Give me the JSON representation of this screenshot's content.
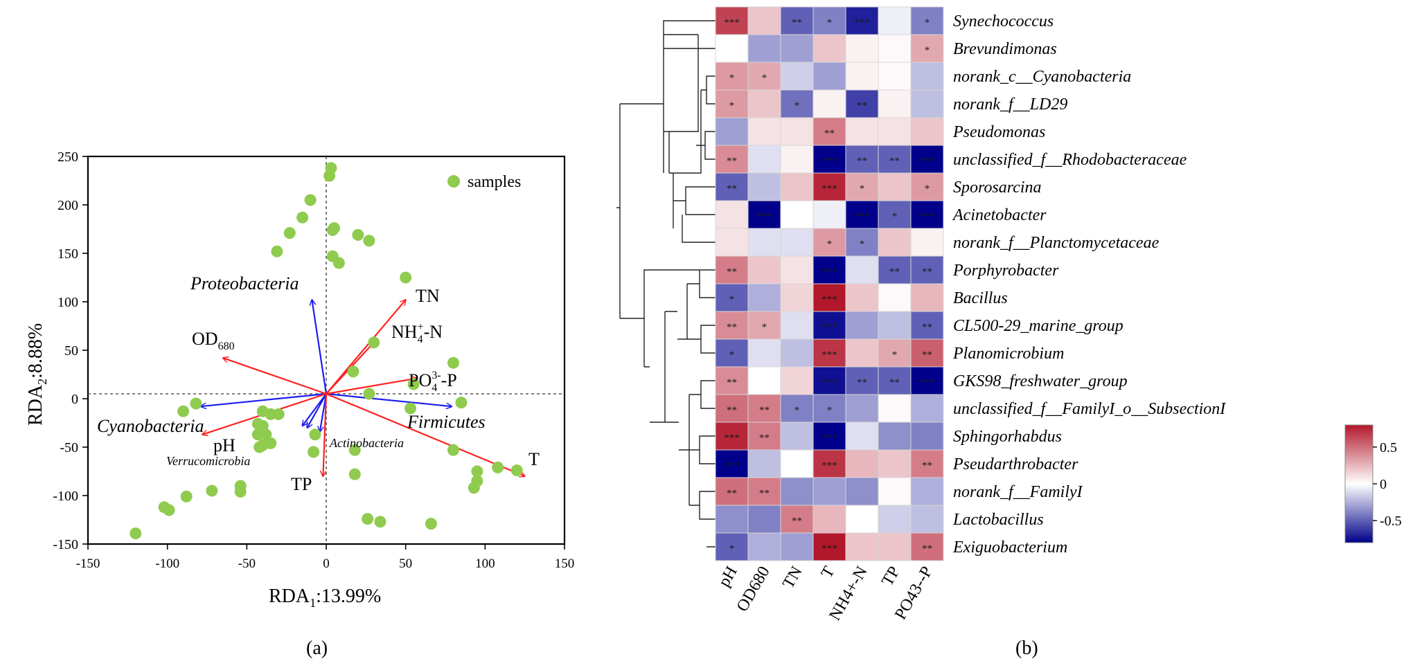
{
  "chart_data": [
    {
      "type": "scatter",
      "panel_label": "(a)",
      "xlabel": "RDA",
      "xlabel_sub": "1",
      "xlabel_suffix": ":13.99%",
      "ylabel": "RDA",
      "ylabel_sub": "2",
      "ylabel_suffix": ":8.88%",
      "xlim": [
        -150,
        150
      ],
      "ylim": [
        -150,
        250
      ],
      "xticks": [
        "-150",
        "-100",
        "-50",
        "0",
        "50",
        "100",
        "150"
      ],
      "yticks": [
        "-150",
        "-100",
        "-50",
        "0",
        "50",
        "100",
        "150",
        "200",
        "250"
      ],
      "legend": {
        "label": "samples",
        "placement": "top-right"
      },
      "origin_lines": {
        "x": 0,
        "y": 5
      },
      "samples": [
        [
          3,
          238
        ],
        [
          2,
          230
        ],
        [
          -10,
          205
        ],
        [
          -15,
          187
        ],
        [
          -23,
          171
        ],
        [
          -31,
          152
        ],
        [
          5,
          176
        ],
        [
          4,
          174
        ],
        [
          20,
          169
        ],
        [
          27,
          163
        ],
        [
          4,
          147
        ],
        [
          8,
          140
        ],
        [
          50,
          125
        ],
        [
          30,
          58
        ],
        [
          17,
          28
        ],
        [
          55,
          15
        ],
        [
          27,
          5
        ],
        [
          53,
          -10
        ],
        [
          80,
          37
        ],
        [
          85,
          -4
        ],
        [
          -82,
          -5
        ],
        [
          -90,
          -13
        ],
        [
          -40,
          -13
        ],
        [
          -35,
          -16
        ],
        [
          -30,
          -16
        ],
        [
          -43,
          -26
        ],
        [
          -40,
          -28
        ],
        [
          -43,
          -37
        ],
        [
          -38,
          -37
        ],
        [
          -35,
          -46
        ],
        [
          -40,
          -48
        ],
        [
          -42,
          -50
        ],
        [
          -7,
          -37
        ],
        [
          18,
          -53
        ],
        [
          80,
          -53
        ],
        [
          -8,
          -55
        ],
        [
          -54,
          -90
        ],
        [
          -54,
          -96
        ],
        [
          -72,
          -95
        ],
        [
          -88,
          -101
        ],
        [
          -102,
          -112
        ],
        [
          -99,
          -115
        ],
        [
          18,
          -78
        ],
        [
          95,
          -75
        ],
        [
          95,
          -85
        ],
        [
          93,
          -92
        ],
        [
          108,
          -71
        ],
        [
          120,
          -74
        ],
        [
          26,
          -124
        ],
        [
          34,
          -127
        ],
        [
          66,
          -129
        ],
        [
          -120,
          -139
        ]
      ],
      "env_arrows": [
        {
          "name": "TN",
          "x": 50,
          "y": 102
        },
        {
          "name": "NH",
          "sub": "4",
          "sup": "+",
          "tail": "-N",
          "x": 30,
          "y": 58
        },
        {
          "name": "PO",
          "sub": "4",
          "sup": "3-",
          "tail": "-P",
          "x": 57,
          "y": 21
        },
        {
          "name": "OD",
          "sub": "680",
          "x": -65,
          "y": 42
        },
        {
          "name": "pH",
          "x": -78,
          "y": -37
        },
        {
          "name": "TP",
          "x": -2,
          "y": -80
        },
        {
          "name": "T",
          "x": 125,
          "y": -80
        }
      ],
      "taxa_arrows": [
        {
          "name": "Proteobacteria",
          "x": -9,
          "y": 102
        },
        {
          "name": "Firmicutes",
          "x": 79,
          "y": -8
        },
        {
          "name": "Cyanobacteria",
          "x": -79,
          "y": -8
        },
        {
          "name": "Actinobacteria",
          "x": -15,
          "y": -28
        },
        {
          "name": "Verrucomicrobia",
          "x": -12,
          "y": -30
        },
        {
          "name": "",
          "x": -4,
          "y": -34
        }
      ],
      "colors": {
        "samples": "#8fcb4e",
        "env": "#ff2020",
        "taxa": "#1c1cf0"
      }
    },
    {
      "type": "heatmap",
      "panel_label": "(b)",
      "columns": [
        "pH",
        "OD680",
        "TN",
        "T",
        "NH4+-N",
        "TP",
        "PO43--P"
      ],
      "rows": [
        "Synechococcus",
        "Brevundimonas",
        "norank_c__Cyanobacteria",
        "norank_f__LD29",
        "Pseudomonas",
        "unclassified_f__Rhodobacteraceae",
        "Sporosarcina",
        "Acinetobacter",
        "norank_f__Planctomycetaceae",
        "Porphyrobacter",
        "Bacillus",
        "CL500-29_marine_group",
        "Planomicrobium",
        "GKS98_freshwater_group",
        "unclassified_f__FamilyI_o__SubsectionI",
        "Sphingorhabdus",
        "Pseudarthrobacter",
        "norank_f__FamilyI",
        "Lactobacillus",
        "Exiguobacterium"
      ],
      "values": [
        [
          0.65,
          0.2,
          -0.5,
          -0.4,
          -0.7,
          -0.05,
          -0.4
        ],
        [
          0.0,
          -0.3,
          -0.3,
          0.2,
          0.05,
          0.02,
          0.3
        ],
        [
          0.35,
          0.3,
          -0.15,
          -0.3,
          0.05,
          0.02,
          -0.2
        ],
        [
          0.35,
          0.2,
          -0.45,
          0.05,
          -0.6,
          0.05,
          -0.2
        ],
        [
          -0.3,
          0.1,
          0.1,
          0.45,
          0.1,
          0.1,
          0.2
        ],
        [
          0.4,
          -0.1,
          0.05,
          -0.85,
          -0.5,
          -0.5,
          -0.85
        ],
        [
          -0.5,
          -0.2,
          0.2,
          0.75,
          0.3,
          0.2,
          0.35
        ],
        [
          0.1,
          -0.8,
          0.0,
          -0.05,
          -0.8,
          -0.5,
          -0.8
        ],
        [
          0.1,
          -0.1,
          -0.1,
          0.35,
          -0.4,
          0.2,
          0.05
        ],
        [
          0.45,
          0.2,
          0.1,
          -0.8,
          -0.1,
          -0.5,
          -0.5
        ],
        [
          -0.5,
          -0.25,
          0.15,
          0.8,
          0.2,
          0.02,
          0.25
        ],
        [
          0.4,
          0.3,
          -0.1,
          -0.75,
          -0.3,
          -0.2,
          -0.5
        ],
        [
          -0.5,
          -0.1,
          -0.2,
          0.7,
          0.2,
          0.3,
          0.55
        ],
        [
          0.4,
          0.0,
          0.15,
          -0.75,
          -0.5,
          -0.5,
          -0.85
        ],
        [
          0.5,
          0.45,
          -0.4,
          -0.4,
          -0.3,
          0.02,
          -0.25
        ],
        [
          0.75,
          0.45,
          -0.2,
          -0.8,
          -0.1,
          -0.35,
          -0.4
        ],
        [
          -0.85,
          -0.2,
          0.0,
          0.7,
          0.25,
          0.2,
          0.45
        ],
        [
          0.5,
          0.45,
          -0.35,
          -0.3,
          -0.35,
          0.02,
          -0.25
        ],
        [
          -0.35,
          -0.4,
          0.45,
          0.25,
          0.0,
          -0.15,
          -0.2
        ],
        [
          -0.5,
          -0.25,
          -0.3,
          0.8,
          0.2,
          0.2,
          0.5
        ]
      ],
      "significance": [
        [
          "***",
          "",
          "**",
          "*",
          "***",
          "",
          "*"
        ],
        [
          "",
          "",
          "",
          "",
          "",
          "",
          "*"
        ],
        [
          "*",
          "*",
          "",
          "",
          "",
          "",
          ""
        ],
        [
          "*",
          "",
          "*",
          "",
          "**",
          "",
          ""
        ],
        [
          "",
          "",
          "",
          "**",
          "",
          "",
          ""
        ],
        [
          "**",
          "",
          "",
          "***",
          "**",
          "**",
          "***"
        ],
        [
          "**",
          "",
          "",
          "***",
          "*",
          "",
          "*"
        ],
        [
          "",
          "***",
          "",
          "",
          "***",
          "*",
          "***"
        ],
        [
          "",
          "",
          "",
          "*",
          "*",
          "",
          ""
        ],
        [
          "**",
          "",
          "",
          "***",
          "",
          "**",
          "**"
        ],
        [
          "*",
          "",
          "",
          "***",
          "",
          "",
          ""
        ],
        [
          "**",
          "*",
          "",
          "***",
          "",
          "",
          "**"
        ],
        [
          "*",
          "",
          "",
          "***",
          "",
          "*",
          "**"
        ],
        [
          "**",
          "",
          "",
          "***",
          "**",
          "**",
          "***"
        ],
        [
          "**",
          "**",
          "*",
          "*",
          "",
          "",
          ""
        ],
        [
          "***",
          "**",
          "",
          "***",
          "",
          "",
          ""
        ],
        [
          "***",
          "",
          "",
          "***",
          "",
          "",
          "**"
        ],
        [
          "**",
          "**",
          "",
          "",
          "",
          "",
          ""
        ],
        [
          "",
          "",
          "**",
          "",
          "",
          "",
          ""
        ],
        [
          "*",
          "",
          "",
          "***",
          "",
          "",
          "**"
        ]
      ],
      "colorbar": {
        "min": -0.8,
        "max": 0.8,
        "ticks": [
          "0.5",
          "0",
          "-0.5"
        ],
        "tick_values": [
          0.5,
          0,
          -0.5
        ]
      },
      "colors": {
        "low": "#00008b",
        "mid": "#ffffff",
        "high": "#b2182b"
      },
      "dendrogram": {
        "position": "left",
        "clustered": true
      }
    }
  ]
}
